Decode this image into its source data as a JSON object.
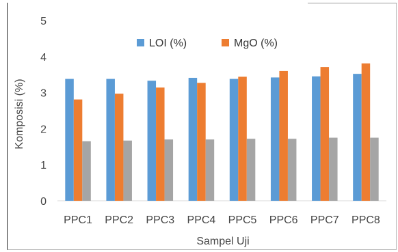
{
  "chart_data": {
    "type": "bar",
    "title": "",
    "xlabel": "Sampel Uji",
    "ylabel": "Komposisi (%)",
    "ylim": [
      0,
      5
    ],
    "yticks": [
      0,
      1,
      2,
      3,
      4,
      5
    ],
    "grid": false,
    "legend_position": "top",
    "categories": [
      "PPC1",
      "PPC2",
      "PPC3",
      "PPC4",
      "PPC5",
      "PPC6",
      "PPC7",
      "PPC8"
    ],
    "series": [
      {
        "name": "LOI (%)",
        "color": "#5B9BD5",
        "values": [
          3.38,
          3.38,
          3.33,
          3.41,
          3.38,
          3.42,
          3.45,
          3.52
        ]
      },
      {
        "name": "MgO (%)",
        "color": "#ED7D31",
        "values": [
          2.81,
          2.97,
          3.14,
          3.27,
          3.44,
          3.6,
          3.71,
          3.81
        ]
      },
      {
        "name": "",
        "color": "#A5A5A5",
        "values": [
          1.65,
          1.67,
          1.7,
          1.7,
          1.72,
          1.72,
          1.75,
          1.75
        ]
      }
    ]
  }
}
